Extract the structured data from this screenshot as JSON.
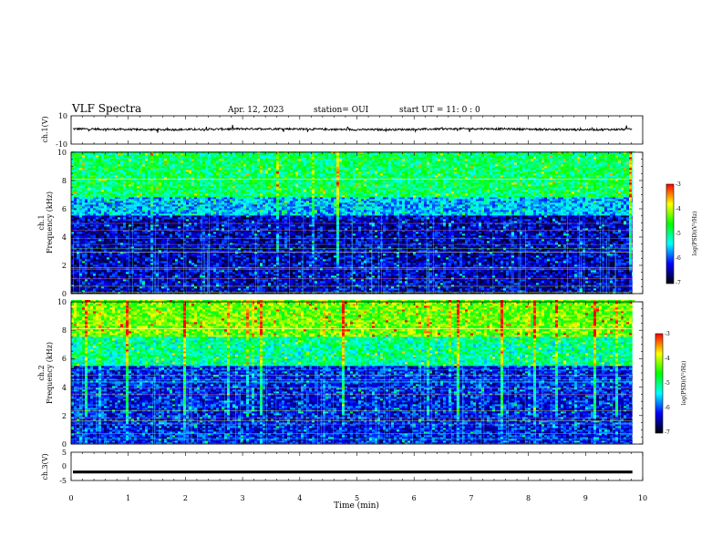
{
  "header": {
    "title": "VLF Spectra",
    "date": "Apr. 12, 2023",
    "station": "station= OUI",
    "start": "start  UT =   11: 0  : 0"
  },
  "colors": {
    "colormap": [
      "#000000",
      "#000080",
      "#0000ff",
      "#0080ff",
      "#00ffff",
      "#00ff80",
      "#00ff00",
      "#80ff00",
      "#ffff00",
      "#ff8000",
      "#ff0000",
      "#ffffff"
    ]
  },
  "chart_data": [
    {
      "type": "line",
      "panel": "ch1-waveform",
      "ylabel": "ch.1(V)",
      "ylim": [
        -10,
        10
      ],
      "yticks": [
        "10",
        "-10"
      ],
      "xlim": [
        0,
        10
      ],
      "mean_value": 0.5
    },
    {
      "type": "heatmap",
      "panel": "ch1-spectrogram",
      "ylabel_prefix": "ch.1",
      "ylabel": "Frequency (kHz)",
      "ylim": [
        0,
        10
      ],
      "yticks": [
        "0",
        "2",
        "4",
        "6",
        "8",
        "10"
      ],
      "xlim": [
        0,
        10
      ],
      "data_end_min": 9.82,
      "colorbar": {
        "label": "log(PSD)(V²/Hz)",
        "range": [
          -7,
          -3
        ],
        "ticks": [
          "-3",
          "-4",
          "-5",
          "-6",
          "-7"
        ]
      },
      "bands_kHz": [
        {
          "from": 0,
          "to": 5.5,
          "level": -6.4
        },
        {
          "from": 5.5,
          "to": 6.8,
          "level": -5.6
        },
        {
          "from": 6.8,
          "to": 10,
          "level": -4.9
        }
      ]
    },
    {
      "type": "heatmap",
      "panel": "ch2-spectrogram",
      "ylabel_prefix": "ch.2",
      "ylabel": "Frequency (kHz)",
      "ylim": [
        0,
        10
      ],
      "yticks": [
        "0",
        "2",
        "4",
        "6",
        "8",
        "10"
      ],
      "xlim": [
        0,
        10
      ],
      "data_end_min": 9.82,
      "colorbar": {
        "label": "log(PSD)(V²/Hz)",
        "range": [
          -7,
          -3
        ],
        "ticks": [
          "-3",
          "-4",
          "-5",
          "-6",
          "-7"
        ]
      },
      "bands_kHz": [
        {
          "from": 0,
          "to": 5.5,
          "level": -6.2
        },
        {
          "from": 5.5,
          "to": 7.5,
          "level": -5.1
        },
        {
          "from": 7.5,
          "to": 10,
          "level": -4.3
        }
      ]
    },
    {
      "type": "line",
      "panel": "ch3-waveform",
      "ylabel": "ch.3(V)",
      "ylim": [
        -5,
        5
      ],
      "yticks": [
        "5",
        "0",
        "-5"
      ],
      "xlim": [
        0,
        10
      ],
      "mean_value": -2.0,
      "xlabel": "Time (min)",
      "xticks": [
        "0",
        "1",
        "2",
        "3",
        "4",
        "5",
        "6",
        "7",
        "8",
        "9",
        "10"
      ]
    }
  ]
}
